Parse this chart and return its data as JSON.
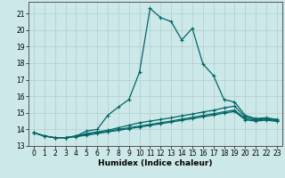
{
  "xlabel": "Humidex (Indice chaleur)",
  "background_color": "#cce8e8",
  "grid_color": "#b0cccc",
  "line_color": "#006666",
  "xlim": [
    -0.5,
    23.5
  ],
  "ylim": [
    13.0,
    21.7
  ],
  "yticks": [
    13,
    14,
    15,
    16,
    17,
    18,
    19,
    20,
    21
  ],
  "xticks": [
    0,
    1,
    2,
    3,
    4,
    5,
    6,
    7,
    8,
    9,
    10,
    11,
    12,
    13,
    14,
    15,
    16,
    17,
    18,
    19,
    20,
    21,
    22,
    23
  ],
  "series": [
    {
      "x": [
        0,
        1,
        2,
        3,
        4,
        5,
        6,
        7,
        8,
        9,
        10,
        11,
        12,
        13,
        14,
        15,
        16,
        17,
        18,
        19,
        20,
        21,
        22,
        23
      ],
      "y": [
        13.8,
        13.6,
        13.5,
        13.5,
        13.6,
        13.9,
        14.0,
        14.85,
        15.35,
        15.8,
        17.45,
        21.3,
        20.75,
        20.5,
        19.4,
        20.1,
        17.95,
        17.25,
        15.8,
        15.65,
        14.85,
        14.65,
        14.7,
        14.6
      ]
    },
    {
      "x": [
        0,
        1,
        2,
        3,
        4,
        5,
        6,
        7,
        8,
        9,
        10,
        11,
        12,
        13,
        14,
        15,
        16,
        17,
        18,
        19,
        20,
        21,
        22,
        23
      ],
      "y": [
        13.8,
        13.6,
        13.5,
        13.5,
        13.6,
        13.75,
        13.85,
        13.95,
        14.1,
        14.25,
        14.4,
        14.5,
        14.6,
        14.7,
        14.82,
        14.92,
        15.05,
        15.15,
        15.3,
        15.4,
        14.75,
        14.62,
        14.68,
        14.58
      ]
    },
    {
      "x": [
        0,
        1,
        2,
        3,
        4,
        5,
        6,
        7,
        8,
        9,
        10,
        11,
        12,
        13,
        14,
        15,
        16,
        17,
        18,
        19,
        20,
        21,
        22,
        23
      ],
      "y": [
        13.8,
        13.6,
        13.5,
        13.5,
        13.58,
        13.68,
        13.78,
        13.88,
        14.0,
        14.1,
        14.2,
        14.3,
        14.4,
        14.5,
        14.62,
        14.72,
        14.84,
        14.94,
        15.06,
        15.16,
        14.65,
        14.55,
        14.62,
        14.52
      ]
    },
    {
      "x": [
        0,
        1,
        2,
        3,
        4,
        5,
        6,
        7,
        8,
        9,
        10,
        11,
        12,
        13,
        14,
        15,
        16,
        17,
        18,
        19,
        20,
        21,
        22,
        23
      ],
      "y": [
        13.8,
        13.6,
        13.5,
        13.5,
        13.56,
        13.65,
        13.75,
        13.85,
        13.94,
        14.04,
        14.14,
        14.24,
        14.34,
        14.44,
        14.55,
        14.65,
        14.76,
        14.86,
        14.98,
        15.08,
        14.58,
        14.5,
        14.56,
        14.48
      ]
    }
  ]
}
